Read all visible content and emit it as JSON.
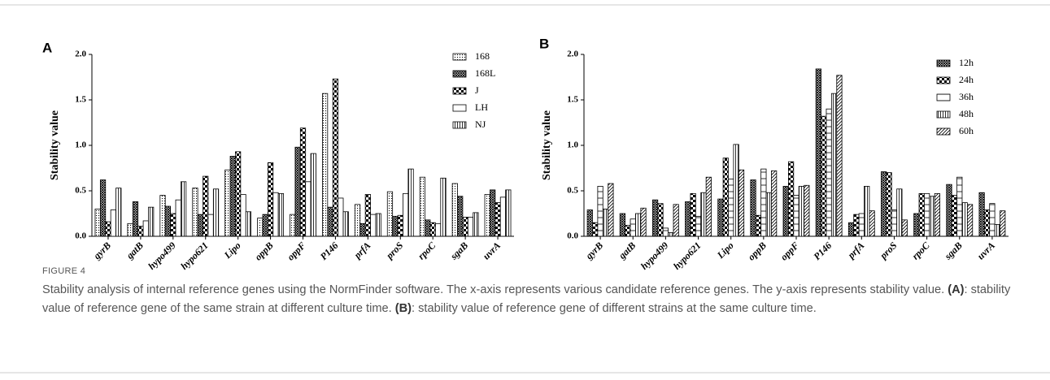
{
  "chart_data": [
    {
      "type": "bar",
      "panel_label": "A",
      "y_label": "Stability value",
      "categories": [
        "gyrB",
        "gatB",
        "hypo499",
        "hypo621",
        "Lipo",
        "oppB",
        "oppF",
        "P146",
        "prfA",
        "proS",
        "rpoC",
        "sgaB",
        "uvrA"
      ],
      "series": [
        {
          "name": "168",
          "color": "#000000",
          "pattern": "dots",
          "values": [
            0.3,
            0.14,
            0.45,
            0.53,
            0.73,
            0.2,
            0.24,
            1.57,
            0.35,
            0.49,
            0.65,
            0.58,
            0.46
          ]
        },
        {
          "name": "168L",
          "color": "#000000",
          "pattern": "crosshatch",
          "values": [
            0.62,
            0.38,
            0.33,
            0.24,
            0.88,
            0.24,
            0.98,
            0.32,
            0.14,
            0.22,
            0.18,
            0.44,
            0.51
          ]
        },
        {
          "name": "J",
          "color": "#000000",
          "pattern": "checker",
          "values": [
            0.16,
            0.11,
            0.25,
            0.66,
            0.93,
            0.81,
            1.19,
            1.73,
            0.46,
            0.23,
            0.15,
            0.21,
            0.37
          ]
        },
        {
          "name": "LH",
          "color": "#000000",
          "pattern": "none",
          "values": [
            0.29,
            0.17,
            0.4,
            0.24,
            0.46,
            0.48,
            0.6,
            0.42,
            0.24,
            0.47,
            0.14,
            0.21,
            0.43
          ]
        },
        {
          "name": "NJ",
          "color": "#000000",
          "pattern": "vlines",
          "values": [
            0.53,
            0.32,
            0.6,
            0.52,
            0.27,
            0.47,
            0.91,
            0.27,
            0.25,
            0.74,
            0.64,
            0.26,
            0.51
          ]
        }
      ],
      "ylim": [
        0,
        2
      ],
      "yticks": [
        {
          "value": 0,
          "label": "0.0"
        },
        {
          "value": 0.5,
          "label": "0.5"
        },
        {
          "value": 1,
          "label": "1.0"
        },
        {
          "value": 1.5,
          "label": "1.5"
        },
        {
          "value": 2,
          "label": "2.0"
        }
      ]
    },
    {
      "type": "bar",
      "panel_label": "B",
      "y_label": "Stability value",
      "categories": [
        "gyrB",
        "gatB",
        "hypo499",
        "hypo621",
        "Lipo",
        "oppB",
        "oppF",
        "P146",
        "prfA",
        "proS",
        "rpoC",
        "sgaB",
        "uvrA"
      ],
      "series": [
        {
          "name": "12h",
          "color": "#000000",
          "pattern": "crosshatch",
          "values": [
            0.29,
            0.25,
            0.4,
            0.38,
            0.41,
            0.62,
            0.55,
            1.84,
            0.15,
            0.71,
            0.25,
            0.57,
            0.48
          ]
        },
        {
          "name": "24h",
          "color": "#000000",
          "pattern": "checker",
          "values": [
            0.15,
            0.12,
            0.36,
            0.47,
            0.86,
            0.23,
            0.82,
            1.32,
            0.24,
            0.7,
            0.47,
            0.45,
            0.29
          ]
        },
        {
          "name": "36h",
          "color": "#000000",
          "pattern": "hlines",
          "values": [
            0.55,
            0.19,
            0.09,
            0.22,
            0.63,
            0.74,
            0.45,
            1.4,
            0.25,
            0.29,
            0.47,
            0.65,
            0.36
          ]
        },
        {
          "name": "48h",
          "color": "#000000",
          "pattern": "vlines",
          "values": [
            0.3,
            0.25,
            0.04,
            0.48,
            1.01,
            0.48,
            0.55,
            1.57,
            0.55,
            0.52,
            0.44,
            0.37,
            0.13
          ]
        },
        {
          "name": "60h",
          "color": "#000000",
          "pattern": "diag",
          "values": [
            0.58,
            0.31,
            0.35,
            0.65,
            0.73,
            0.72,
            0.56,
            1.77,
            0.28,
            0.18,
            0.47,
            0.35,
            0.28
          ]
        }
      ],
      "ylim": [
        0,
        2
      ],
      "yticks": [
        {
          "value": 0,
          "label": "0.0"
        },
        {
          "value": 0.5,
          "label": "0.5"
        },
        {
          "value": 1,
          "label": "1.0"
        },
        {
          "value": 1.5,
          "label": "1.5"
        },
        {
          "value": 2,
          "label": "2.0"
        }
      ]
    }
  ],
  "caption": {
    "label": "FIGURE 4",
    "parts": [
      "Stability analysis of internal reference genes using the NormFinder software. The x-axis represents various candidate reference genes. The y-axis represents stability value. ",
      "(A)",
      ": stability value of reference gene of the same strain at different culture time. ",
      "(B)",
      ": stability value of reference gene of different strains at the same culture time."
    ]
  }
}
